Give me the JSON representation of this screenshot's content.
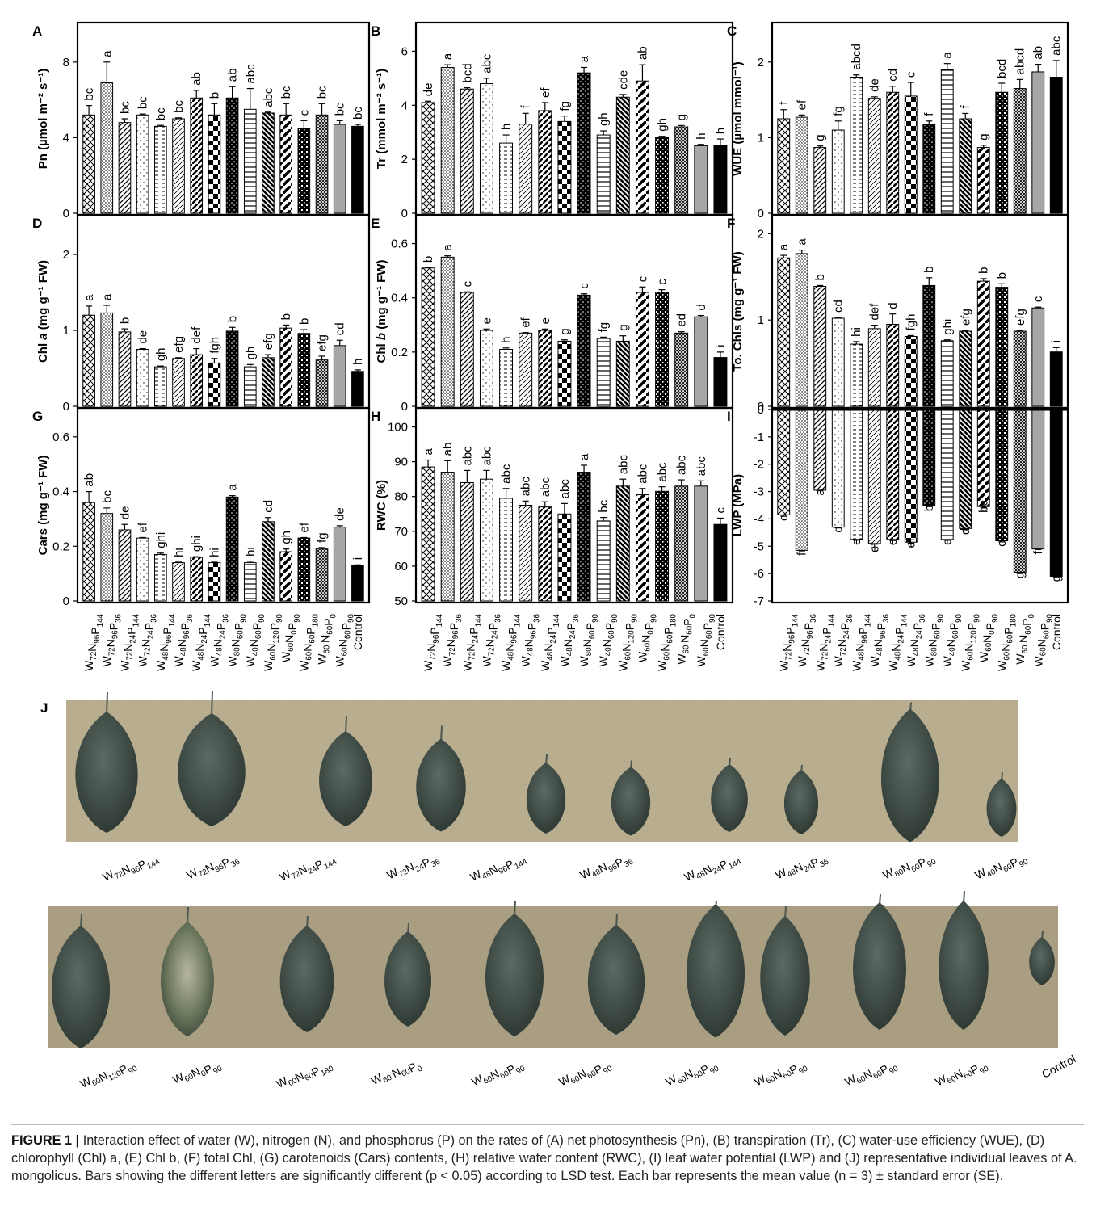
{
  "figure": {
    "caption_label": "FIGURE 1 |",
    "caption_text": "Interaction effect of water (W), nitrogen (N), and phosphorus (P) on the rates of (A) net photosynthesis (Pn), (B) transpiration (Tr), (C) water-use efficiency (WUE), (D) chlorophyll (Chl) a, (E) Chl b, (F) total Chl, (G) carotenoids (Cars) contents, (H) relative water content (RWC), (I) leaf water potential (LWP) and (J) representative individual leaves of A. mongolicus. Bars showing the different letters are significantly different (p < 0.05) according to LSD test. Each bar represents the mean value (n = 3) ± standard error (SE)."
  },
  "treatments": [
    [
      "W",
      "72",
      "N",
      "96",
      "P",
      "144"
    ],
    [
      "W",
      "72",
      "N",
      "96",
      "P",
      "36"
    ],
    [
      "W",
      "72",
      "N",
      "24",
      "P",
      "144"
    ],
    [
      "W",
      "72",
      "N",
      "24",
      "P",
      "36"
    ],
    [
      "W",
      "48",
      "N",
      "96",
      "P",
      "144"
    ],
    [
      "W",
      "48",
      "N",
      "96",
      "P",
      "36"
    ],
    [
      "W",
      "48",
      "N",
      "24",
      "P",
      "144"
    ],
    [
      "W",
      "48",
      "N",
      "24",
      "P",
      "36"
    ],
    [
      "W",
      "80",
      "N",
      "60",
      "P",
      "90"
    ],
    [
      "W",
      "40",
      "N",
      "60",
      "P",
      "90"
    ],
    [
      "W",
      "60",
      "N",
      "120",
      "P",
      "90"
    ],
    [
      "W",
      "60",
      "N",
      "0",
      "P",
      "90"
    ],
    [
      "W",
      "60",
      "N",
      "60",
      "P",
      "180"
    ],
    [
      "W",
      "60 ",
      "N",
      "60",
      "P",
      "0"
    ],
    [
      "W",
      "60",
      "N",
      "60",
      "P",
      "90"
    ],
    [
      "Control"
    ]
  ],
  "chart_data": [
    {
      "panel": "A",
      "type": "bar",
      "ylabel": "Pn (µmol m⁻² s⁻¹)",
      "ylim": [
        0,
        10
      ],
      "yticks": [
        0,
        4,
        8
      ],
      "values": [
        5.2,
        6.9,
        4.8,
        5.2,
        4.6,
        5.0,
        6.1,
        5.2,
        6.1,
        5.5,
        5.3,
        5.2,
        4.5,
        5.2,
        4.7,
        4.6
      ],
      "errors": [
        0.5,
        1.1,
        0.2,
        0.05,
        0.05,
        0.05,
        0.4,
        0.6,
        0.6,
        1.1,
        0.05,
        0.6,
        0.4,
        0.6,
        0.2,
        0.1
      ],
      "letters": [
        "bc",
        "a",
        "bc",
        "bc",
        "bc",
        "bc",
        "ab",
        "b",
        "ab",
        "abc",
        "abc",
        "bc",
        "c",
        "bc",
        "bc",
        "bc"
      ]
    },
    {
      "panel": "B",
      "type": "bar",
      "ylabel": "Tr (mmol m⁻² s⁻¹)",
      "ylim": [
        0,
        7
      ],
      "yticks": [
        0,
        2,
        4,
        6
      ],
      "values": [
        4.1,
        5.4,
        4.6,
        4.8,
        2.6,
        3.3,
        3.8,
        3.4,
        5.2,
        2.9,
        4.3,
        4.9,
        2.8,
        3.2,
        2.5,
        2.5
      ],
      "errors": [
        0.05,
        0.1,
        0.05,
        0.2,
        0.3,
        0.4,
        0.3,
        0.2,
        0.2,
        0.15,
        0.1,
        0.6,
        0.05,
        0.05,
        0.05,
        0.25
      ],
      "letters": [
        "de",
        "a",
        "bcd",
        "abc",
        "h",
        "f",
        "ef",
        "fg",
        "a",
        "gh",
        "cde",
        "ab",
        "gh",
        "g",
        "h",
        "h"
      ]
    },
    {
      "panel": "C",
      "type": "bar",
      "ylabel": "WUE (µmol mmol⁻¹)",
      "ylim": [
        0,
        2.5
      ],
      "yticks": [
        0,
        1,
        2
      ],
      "values": [
        1.25,
        1.27,
        0.87,
        1.1,
        1.8,
        1.52,
        1.6,
        1.55,
        1.17,
        1.9,
        1.25,
        0.87,
        1.6,
        1.65,
        1.87,
        1.8
      ],
      "errors": [
        0.12,
        0.03,
        0.02,
        0.12,
        0.03,
        0.02,
        0.08,
        0.18,
        0.05,
        0.08,
        0.07,
        0.03,
        0.12,
        0.12,
        0.1,
        0.22
      ],
      "letters": [
        "f",
        "ef",
        "g",
        "fg",
        "abcd",
        "de",
        "cd",
        "c",
        "f",
        "a",
        "f",
        "g",
        "bcd",
        "abcd",
        "ab",
        "abc"
      ]
    },
    {
      "panel": "D",
      "type": "bar",
      "ylabel": "Chl a (mg g⁻¹ FW)",
      "ylim": [
        0,
        2.5
      ],
      "yticks": [
        0,
        1,
        2
      ],
      "values": [
        1.2,
        1.23,
        0.98,
        0.75,
        0.52,
        0.63,
        0.68,
        0.57,
        0.99,
        0.52,
        0.64,
        1.03,
        0.96,
        0.61,
        0.8,
        0.46
      ],
      "errors": [
        0.12,
        0.1,
        0.04,
        0.01,
        0.01,
        0.01,
        0.08,
        0.06,
        0.05,
        0.03,
        0.04,
        0.04,
        0.05,
        0.05,
        0.07,
        0.02
      ],
      "letters": [
        "a",
        "a",
        "b",
        "de",
        "gh",
        "efg",
        "def",
        "fgh",
        "b",
        "gh",
        "efg",
        "b",
        "b",
        "efg",
        "cd",
        "h"
      ]
    },
    {
      "panel": "E",
      "type": "bar",
      "ylabel": "Chl b (mg g⁻¹ FW)",
      "ylim": [
        0,
        0.7
      ],
      "yticks": [
        0,
        0.2,
        0.4,
        0.6
      ],
      "values": [
        0.51,
        0.55,
        0.42,
        0.28,
        0.21,
        0.27,
        0.28,
        0.24,
        0.41,
        0.25,
        0.24,
        0.42,
        0.42,
        0.27,
        0.33,
        0.18
      ],
      "errors": [
        0.002,
        0.005,
        0.002,
        0.005,
        0.005,
        0.002,
        0.005,
        0.005,
        0.005,
        0.005,
        0.02,
        0.02,
        0.01,
        0.005,
        0.005,
        0.02
      ],
      "letters": [
        "b",
        "a",
        "c",
        "e",
        "h",
        "ef",
        "e",
        "g",
        "c",
        "fg",
        "g",
        "c",
        "c",
        "ed",
        "d",
        "i"
      ]
    },
    {
      "panel": "F",
      "type": "bar",
      "ylabel": "To. Chls (mg g⁻¹ FW)",
      "ylim": [
        0,
        2.2
      ],
      "yticks": [
        0,
        1,
        2
      ],
      "values": [
        1.72,
        1.77,
        1.39,
        1.02,
        0.72,
        0.9,
        0.95,
        0.81,
        1.4,
        0.76,
        0.87,
        1.45,
        1.38,
        0.87,
        1.14,
        0.63
      ],
      "errors": [
        0.03,
        0.04,
        0.01,
        0.01,
        0.03,
        0.04,
        0.12,
        0.01,
        0.09,
        0.01,
        0.01,
        0.03,
        0.04,
        0.01,
        0.01,
        0.05
      ],
      "letters": [
        "a",
        "a",
        "b",
        "cd",
        "hi",
        "def",
        "d",
        "fgh",
        "b",
        "ghi",
        "efg",
        "b",
        "b",
        "efg",
        "c",
        "i"
      ]
    },
    {
      "panel": "G",
      "type": "bar",
      "ylabel": "Cars (mg g⁻¹ FW)",
      "ylim": [
        0,
        0.7
      ],
      "yticks": [
        0,
        0.2,
        0.4,
        0.6
      ],
      "values": [
        0.36,
        0.32,
        0.26,
        0.23,
        0.17,
        0.14,
        0.16,
        0.14,
        0.38,
        0.14,
        0.29,
        0.18,
        0.23,
        0.19,
        0.27,
        0.13
      ],
      "errors": [
        0.04,
        0.02,
        0.02,
        0.002,
        0.005,
        0.002,
        0.002,
        0.002,
        0.005,
        0.005,
        0.015,
        0.01,
        0.002,
        0.005,
        0.005,
        0.002
      ],
      "letters": [
        "ab",
        "bc",
        "de",
        "ef",
        "ghi",
        "hi",
        "ghi",
        "hi",
        "a",
        "hi",
        "cd",
        "gh",
        "ef",
        "fg",
        "de",
        "i"
      ]
    },
    {
      "panel": "H",
      "type": "bar",
      "ylabel": "RWC (%)",
      "ylim": [
        50,
        105
      ],
      "yticks": [
        50,
        60,
        70,
        80,
        90,
        100
      ],
      "values": [
        88.5,
        87,
        84,
        85,
        79.5,
        77.5,
        77,
        75,
        87,
        73,
        83,
        80.5,
        81.5,
        83,
        83,
        72
      ],
      "errors": [
        2,
        3.3,
        3.5,
        2.5,
        2.8,
        1.2,
        1.5,
        3,
        2,
        1,
        2,
        1.8,
        1.3,
        1.8,
        1.5,
        1.8
      ],
      "letters": [
        "a",
        "ab",
        "abc",
        "abc",
        "abc",
        "abc",
        "abc",
        "abc",
        "a",
        "bc",
        "abc",
        "abc",
        "abc",
        "abc",
        "abc",
        "c"
      ]
    },
    {
      "panel": "I",
      "type": "bar",
      "ylabel": "LWP (MPa)",
      "ylim": [
        -7,
        0
      ],
      "yticks": [
        0,
        -1,
        -2,
        -3,
        -4,
        -5,
        -6,
        -7
      ],
      "values": [
        -3.85,
        -5.15,
        -2.95,
        -4.3,
        -4.75,
        -4.9,
        -4.75,
        -4.85,
        -3.5,
        -4.75,
        -4.35,
        -3.55,
        -4.8,
        -5.95,
        -5.1,
        -6.1
      ],
      "errors": [
        0.05,
        0.02,
        0.02,
        0.03,
        0.03,
        0.15,
        0.04,
        0.04,
        0.05,
        0.03,
        0.05,
        0.05,
        0.04,
        0.05,
        0.02,
        0.02
      ],
      "letters": [
        "c",
        "f",
        "a",
        "d",
        "e",
        "ef",
        "e",
        "ef",
        "b",
        "e",
        "d",
        "bc",
        "e",
        "g",
        "f",
        "g"
      ]
    }
  ],
  "leaves_panel": {
    "panel_letter": "J",
    "row1_labels": [
      [
        "W",
        "72",
        "N",
        "96",
        "P",
        "144"
      ],
      [
        "W",
        "72",
        "N",
        "96",
        "P",
        "36"
      ],
      [
        "W",
        "72",
        "N",
        "24",
        "P",
        "144"
      ],
      [
        "W",
        "72",
        "N",
        "24",
        "P",
        "36"
      ],
      [
        "W",
        "48",
        "N",
        "96",
        "P",
        "144"
      ],
      [
        "W",
        "48",
        "N",
        "96",
        "P",
        "36"
      ],
      [
        "W",
        "48",
        "N",
        "24",
        "P",
        "144"
      ],
      [
        "W",
        "48",
        "N",
        "24",
        "P",
        "36"
      ],
      [
        "W",
        "80",
        "N",
        "60",
        "P",
        "90"
      ],
      [
        "W",
        "40",
        "N",
        "60",
        "P",
        "90"
      ]
    ],
    "row2_labels": [
      [
        "W",
        "60",
        "N",
        "120",
        "P",
        "90"
      ],
      [
        "W",
        "60",
        "N",
        "0",
        "P",
        "90"
      ],
      [
        "W",
        "60",
        "N",
        "60",
        "P",
        "180"
      ],
      [
        "W",
        "60 ",
        "N",
        "60",
        "P",
        "0"
      ],
      [
        "W",
        "60",
        "N",
        "60",
        "P",
        "90"
      ],
      [
        "W",
        "60",
        "N",
        "60",
        "P",
        "90"
      ],
      [
        "W",
        "60",
        "N",
        "60",
        "P",
        "90"
      ],
      [
        "W",
        "60",
        "N",
        "60",
        "P",
        "90"
      ],
      [
        "W",
        "60",
        "N",
        "60",
        "P",
        "90"
      ],
      [
        "W",
        "60",
        "N",
        "60",
        "P",
        "90"
      ],
      [
        "Control"
      ]
    ]
  }
}
